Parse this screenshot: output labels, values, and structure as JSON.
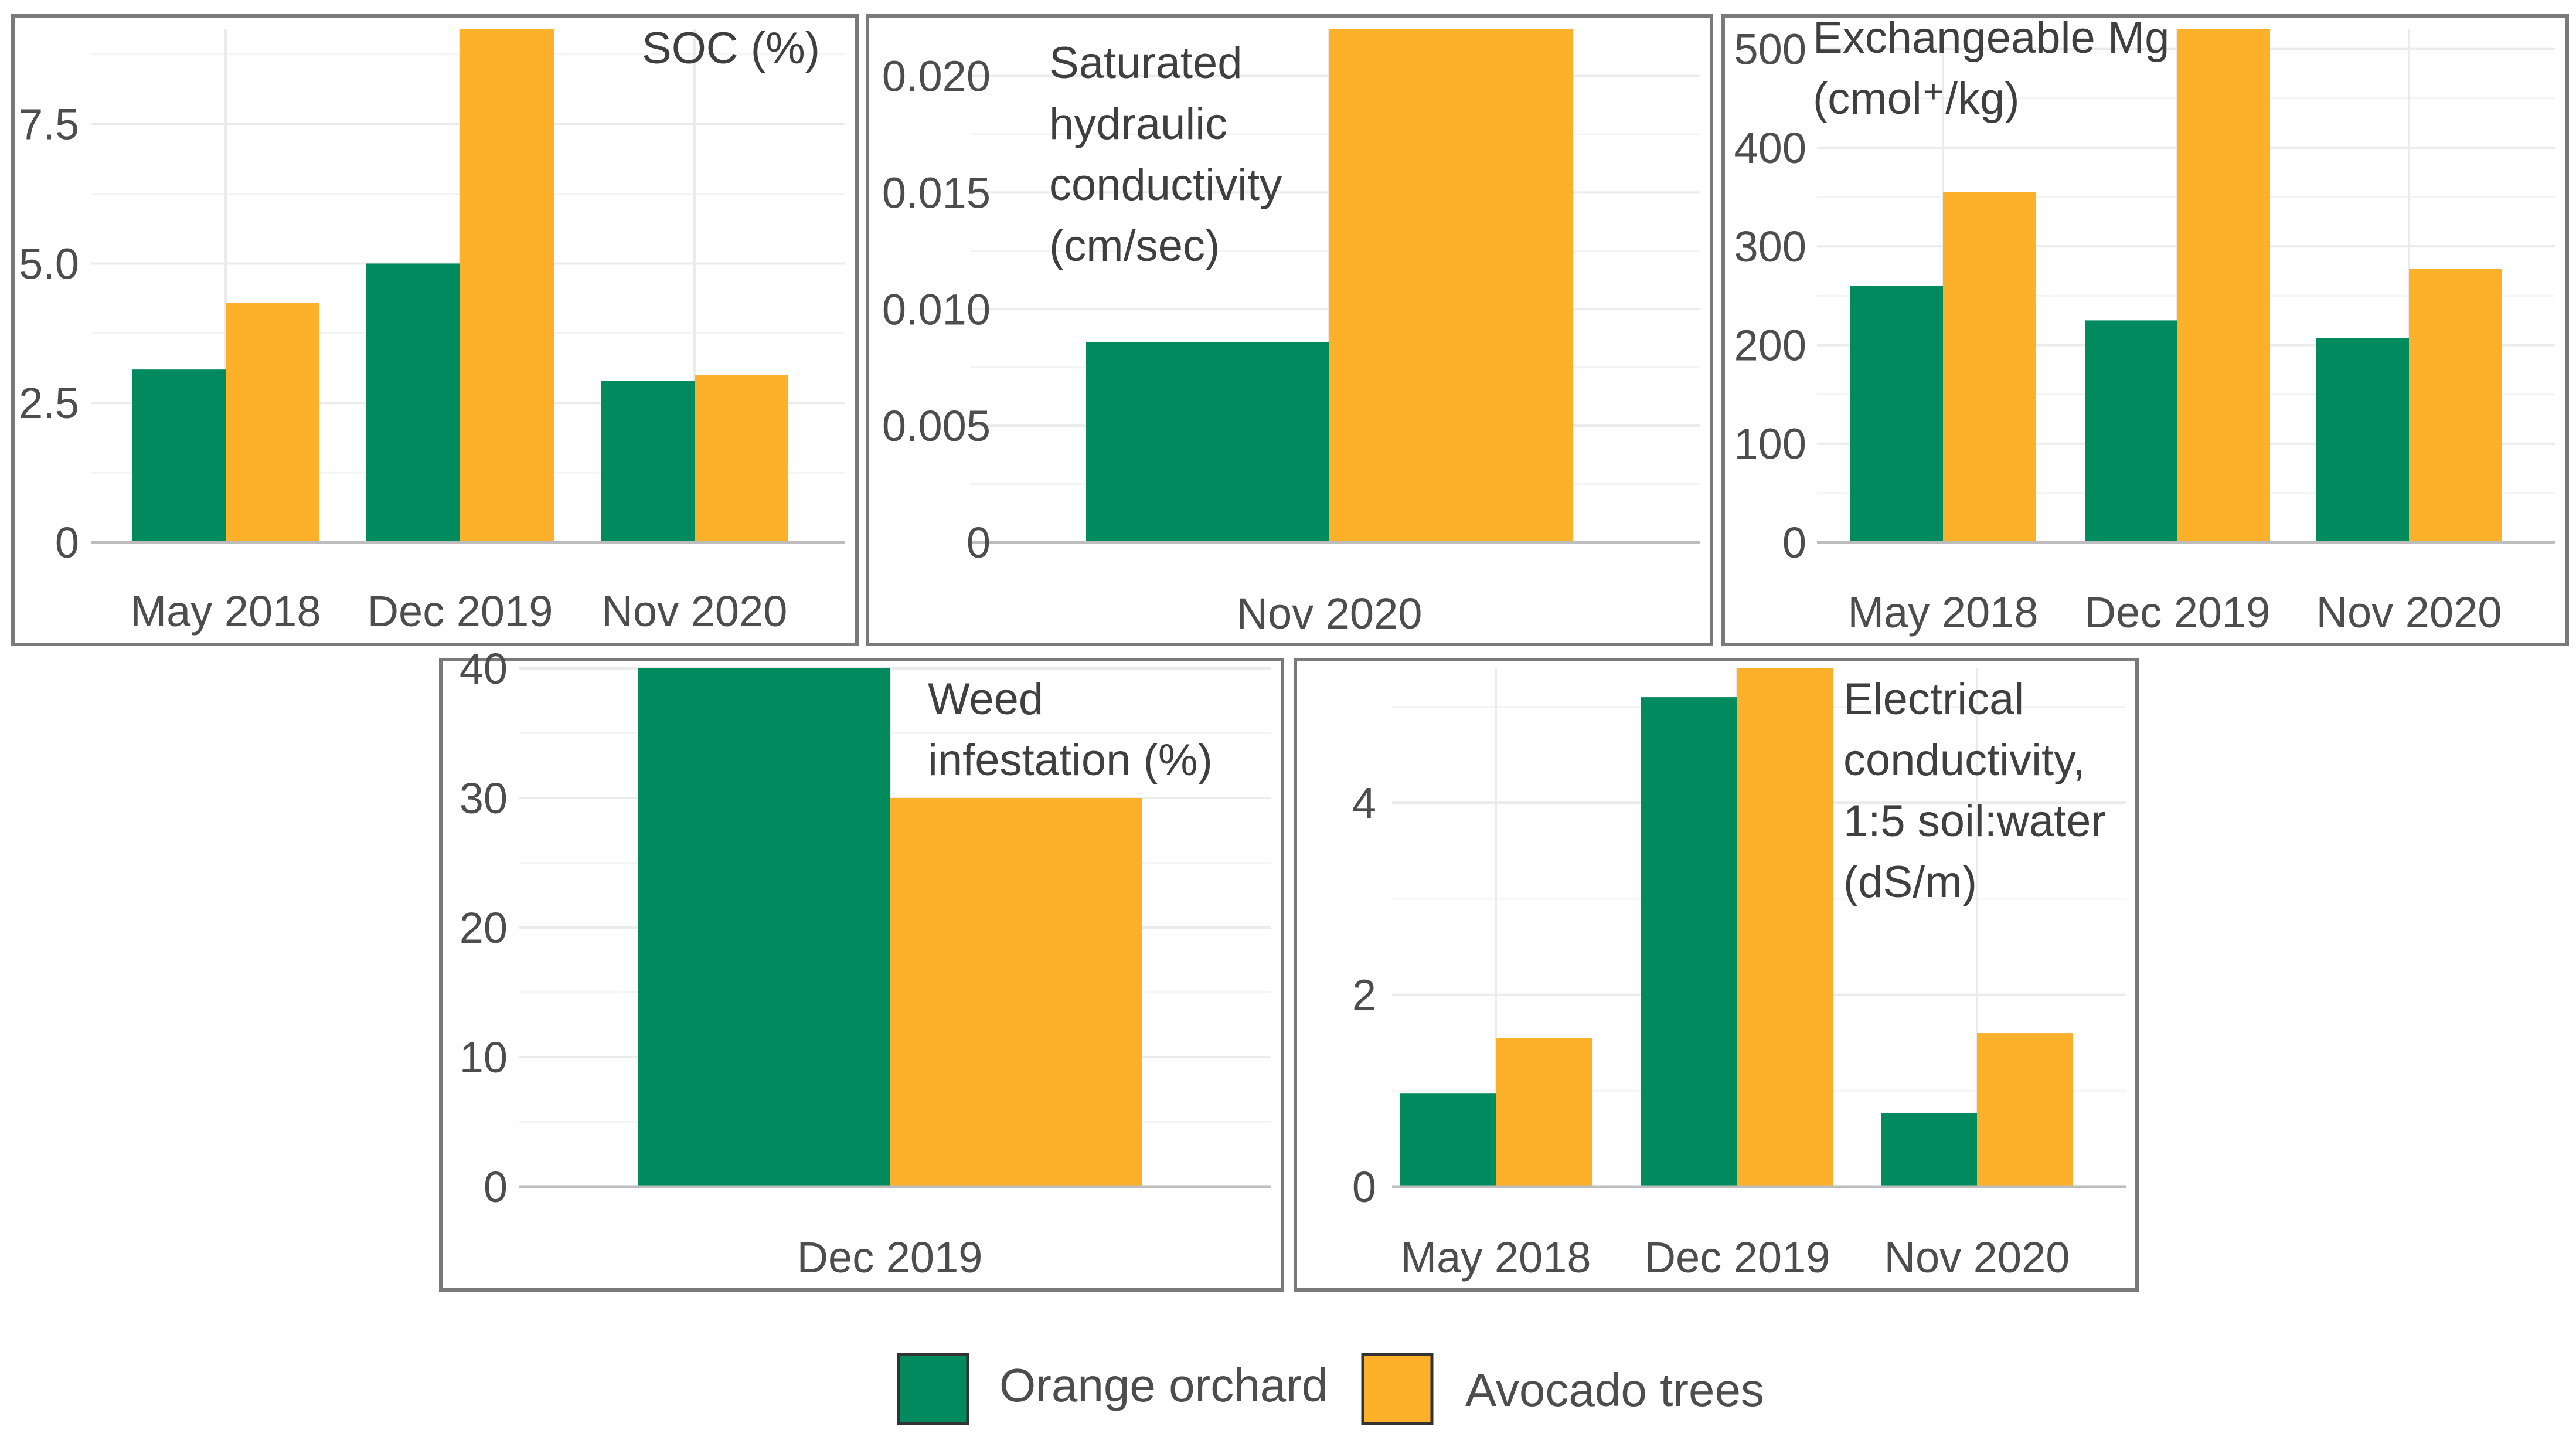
{
  "colors": {
    "orange_orchard": "#008a5e",
    "avocado_trees": "#fdb02a",
    "frame": "#7a7a7a",
    "grid": "#ebebeb",
    "axis_line": "#bdbdbd",
    "text": "#4d4d4d"
  },
  "legend": {
    "position": "bottom-center",
    "items": [
      {
        "label": "Orange orchard",
        "color": "#008a5e"
      },
      {
        "label": "Avocado trees",
        "color": "#fdb02a"
      }
    ]
  },
  "chart_data": [
    {
      "type": "bar",
      "title_lines": [
        "SOC (%)"
      ],
      "categories": [
        "May 2018",
        "Dec 2019",
        "Nov 2020"
      ],
      "series": [
        {
          "name": "Orange orchard",
          "values": [
            3.1,
            5.0,
            2.9
          ]
        },
        {
          "name": "Avocado trees",
          "values": [
            4.3,
            9.2,
            3.0
          ]
        }
      ],
      "yticks": [
        "0",
        "2.5",
        "5.0",
        "7.5"
      ],
      "ytick_values": [
        0,
        2.5,
        5.0,
        7.5
      ],
      "ylim": [
        0,
        9.2
      ],
      "grid": true
    },
    {
      "type": "bar",
      "title_lines": [
        "Saturated",
        "hydraulic",
        "conductivity",
        "(cm/sec)"
      ],
      "categories": [
        "Nov 2020"
      ],
      "series": [
        {
          "name": "Orange orchard",
          "values": [
            0.0086
          ]
        },
        {
          "name": "Avocado trees",
          "values": [
            0.022
          ]
        }
      ],
      "yticks": [
        "0",
        "0.005",
        "0.010",
        "0.015",
        "0.020"
      ],
      "ytick_values": [
        0,
        0.005,
        0.01,
        0.015,
        0.02
      ],
      "ylim": [
        0,
        0.022
      ],
      "grid": true
    },
    {
      "type": "bar",
      "title_lines": [
        "Exchangeable Mg",
        "(cmol⁺/kg)"
      ],
      "categories": [
        "May 2018",
        "Dec 2019",
        "Nov 2020"
      ],
      "series": [
        {
          "name": "Orange orchard",
          "values": [
            260,
            225,
            207
          ]
        },
        {
          "name": "Avocado trees",
          "values": [
            355,
            520,
            277
          ]
        }
      ],
      "yticks": [
        "0",
        "100",
        "200",
        "300",
        "400",
        "500"
      ],
      "ytick_values": [
        0,
        100,
        200,
        300,
        400,
        500
      ],
      "ylim": [
        0,
        520
      ],
      "grid": true
    },
    {
      "type": "bar",
      "title_lines": [
        "Weed",
        "infestation (%)"
      ],
      "categories": [
        "Dec 2019"
      ],
      "series": [
        {
          "name": "Orange orchard",
          "values": [
            40
          ]
        },
        {
          "name": "Avocado trees",
          "values": [
            30
          ]
        }
      ],
      "yticks": [
        "0",
        "10",
        "20",
        "30",
        "40"
      ],
      "ytick_values": [
        0,
        10,
        20,
        30,
        40
      ],
      "ylim": [
        0,
        40
      ],
      "grid": true
    },
    {
      "type": "bar",
      "title_lines": [
        "Electrical",
        "conductivity,",
        "1:5 soil:water",
        "(dS/m)"
      ],
      "categories": [
        "May 2018",
        "Dec 2019",
        "Nov 2020"
      ],
      "series": [
        {
          "name": "Orange orchard",
          "values": [
            0.97,
            5.1,
            0.77
          ]
        },
        {
          "name": "Avocado trees",
          "values": [
            1.55,
            5.4,
            1.6
          ]
        }
      ],
      "yticks": [
        "0",
        "2",
        "4"
      ],
      "ytick_values": [
        0,
        2,
        4
      ],
      "ylim": [
        0,
        5.4
      ],
      "grid": true
    }
  ]
}
